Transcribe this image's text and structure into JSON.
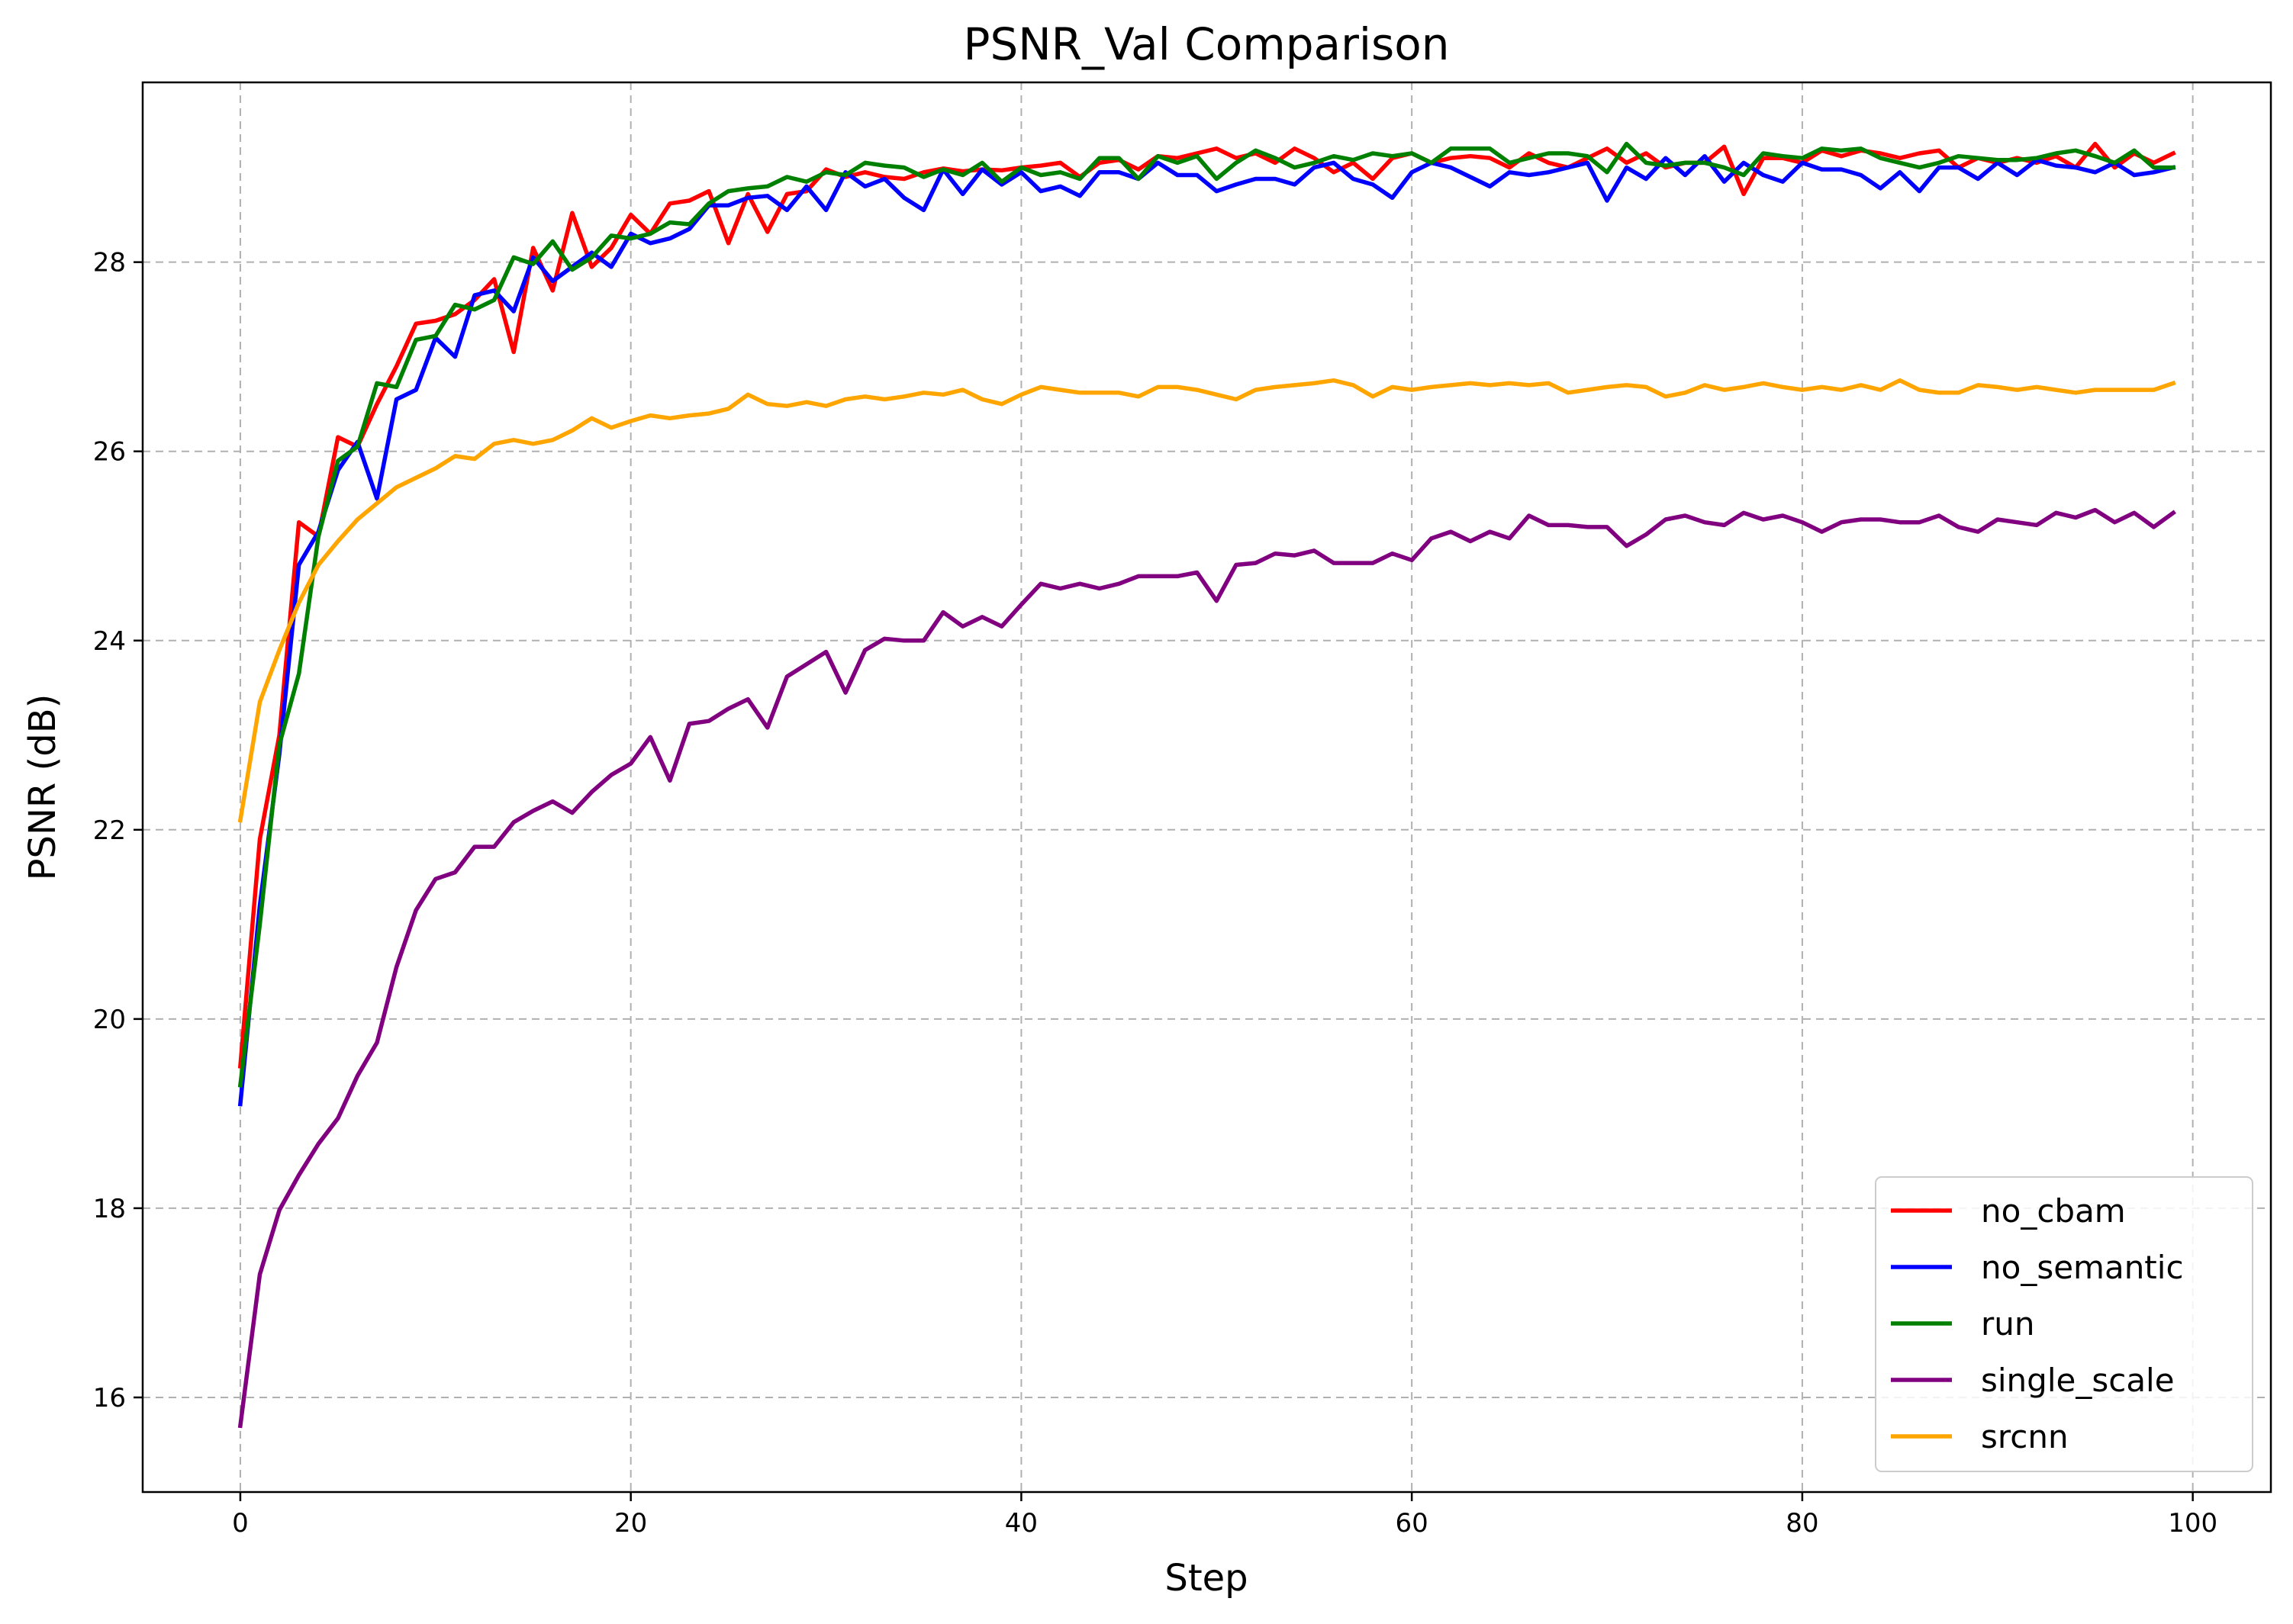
{
  "chart_data": {
    "type": "line",
    "title": "PSNR_Val Comparison",
    "xlabel": "Step",
    "ylabel": "PSNR (dB)",
    "xlim": [
      -5,
      104
    ],
    "ylim": [
      15,
      29.9
    ],
    "xticks": [
      0,
      20,
      40,
      60,
      80,
      100
    ],
    "yticks": [
      16,
      18,
      20,
      22,
      24,
      26,
      28
    ],
    "grid": true,
    "legend_position": "lower-right",
    "x": [
      0,
      1,
      2,
      3,
      4,
      5,
      6,
      7,
      8,
      9,
      10,
      11,
      12,
      13,
      14,
      15,
      16,
      17,
      18,
      19,
      20,
      21,
      22,
      23,
      24,
      25,
      26,
      27,
      28,
      29,
      30,
      31,
      32,
      33,
      34,
      35,
      36,
      37,
      38,
      39,
      40,
      41,
      42,
      43,
      44,
      45,
      46,
      47,
      48,
      49,
      50,
      51,
      52,
      53,
      54,
      55,
      56,
      57,
      58,
      59,
      60,
      61,
      62,
      63,
      64,
      65,
      66,
      67,
      68,
      69,
      70,
      71,
      72,
      73,
      74,
      75,
      76,
      77,
      78,
      79,
      80,
      81,
      82,
      83,
      84,
      85,
      86,
      87,
      88,
      89,
      90,
      91,
      92,
      93,
      94,
      95,
      96,
      97,
      98,
      99
    ],
    "series": [
      {
        "name": "no_cbam",
        "color": "#ff0000",
        "values": [
          19.5,
          21.9,
          23.0,
          25.25,
          25.1,
          26.15,
          26.05,
          26.5,
          26.9,
          27.35,
          27.38,
          27.45,
          27.6,
          27.82,
          27.05,
          28.15,
          27.7,
          28.52,
          27.95,
          28.15,
          28.5,
          28.3,
          28.62,
          28.65,
          28.75,
          28.2,
          28.72,
          28.32,
          28.72,
          28.75,
          28.98,
          28.9,
          28.95,
          28.9,
          28.88,
          28.95,
          28.99,
          28.96,
          28.98,
          28.97,
          29.0,
          29.02,
          29.05,
          28.9,
          29.05,
          29.08,
          28.98,
          29.12,
          29.1,
          29.15,
          29.2,
          29.1,
          29.15,
          29.05,
          29.2,
          29.1,
          28.95,
          29.05,
          28.88,
          29.1,
          29.15,
          29.05,
          29.1,
          29.12,
          29.1,
          29.0,
          29.15,
          29.05,
          29.0,
          29.1,
          29.2,
          29.05,
          29.15,
          29.0,
          29.05,
          29.05,
          29.22,
          28.72,
          29.1,
          29.1,
          29.05,
          29.18,
          29.12,
          29.18,
          29.15,
          29.1,
          29.15,
          29.18,
          29.0,
          29.1,
          29.05,
          29.1,
          29.05,
          29.12,
          29.0,
          29.25,
          29.0,
          29.15,
          29.05,
          29.15
        ]
      },
      {
        "name": "no_semantic",
        "color": "#0000ff",
        "values": [
          19.1,
          21.2,
          22.8,
          24.8,
          25.15,
          25.8,
          26.1,
          25.5,
          26.55,
          26.65,
          27.2,
          27.0,
          27.65,
          27.7,
          27.48,
          28.05,
          27.8,
          27.95,
          28.1,
          27.95,
          28.3,
          28.2,
          28.25,
          28.35,
          28.6,
          28.6,
          28.68,
          28.7,
          28.55,
          28.8,
          28.55,
          28.95,
          28.8,
          28.88,
          28.68,
          28.55,
          28.98,
          28.72,
          28.98,
          28.82,
          28.95,
          28.75,
          28.8,
          28.7,
          28.95,
          28.95,
          28.88,
          29.05,
          28.92,
          28.92,
          28.75,
          28.82,
          28.88,
          28.88,
          28.82,
          29.0,
          29.05,
          28.88,
          28.82,
          28.68,
          28.95,
          29.05,
          29.0,
          28.9,
          28.8,
          28.95,
          28.92,
          28.95,
          29.0,
          29.05,
          28.65,
          29.0,
          28.88,
          29.1,
          28.92,
          29.12,
          28.85,
          29.05,
          28.92,
          28.85,
          29.05,
          28.98,
          28.98,
          28.92,
          28.78,
          28.95,
          28.75,
          29.0,
          29.0,
          28.88,
          29.05,
          28.92,
          29.08,
          29.02,
          29.0,
          28.95,
          29.05,
          28.92,
          28.95,
          29.0
        ]
      },
      {
        "name": "run",
        "color": "#008000",
        "values": [
          19.3,
          21.0,
          22.9,
          23.65,
          25.1,
          25.9,
          26.05,
          26.72,
          26.68,
          27.18,
          27.22,
          27.55,
          27.5,
          27.6,
          28.05,
          27.98,
          28.22,
          27.92,
          28.05,
          28.28,
          28.25,
          28.3,
          28.42,
          28.4,
          28.62,
          28.75,
          28.78,
          28.8,
          28.9,
          28.85,
          28.95,
          28.92,
          29.05,
          29.02,
          29.0,
          28.9,
          28.98,
          28.92,
          29.05,
          28.85,
          29.0,
          28.92,
          28.95,
          28.88,
          29.1,
          29.1,
          28.88,
          29.12,
          29.05,
          29.12,
          28.88,
          29.05,
          29.18,
          29.1,
          29.0,
          29.05,
          29.12,
          29.08,
          29.15,
          29.12,
          29.15,
          29.05,
          29.2,
          29.2,
          29.2,
          29.05,
          29.1,
          29.15,
          29.15,
          29.12,
          28.95,
          29.25,
          29.05,
          29.02,
          29.05,
          29.05,
          29.0,
          28.92,
          29.15,
          29.12,
          29.1,
          29.2,
          29.18,
          29.2,
          29.1,
          29.05,
          29.0,
          29.05,
          29.12,
          29.1,
          29.08,
          29.08,
          29.1,
          29.15,
          29.18,
          29.12,
          29.05,
          29.18,
          29.0,
          29.0
        ]
      },
      {
        "name": "single_scale",
        "color": "#800080",
        "values": [
          15.7,
          17.3,
          17.98,
          18.35,
          18.68,
          18.95,
          19.4,
          19.75,
          20.55,
          21.15,
          21.48,
          21.55,
          21.82,
          21.82,
          22.08,
          22.2,
          22.3,
          22.18,
          22.4,
          22.58,
          22.7,
          22.98,
          22.52,
          23.12,
          23.15,
          23.28,
          23.38,
          23.08,
          23.62,
          23.75,
          23.88,
          23.45,
          23.9,
          24.02,
          24.0,
          24.0,
          24.3,
          24.15,
          24.25,
          24.15,
          24.38,
          24.6,
          24.55,
          24.6,
          24.55,
          24.6,
          24.68,
          24.68,
          24.68,
          24.72,
          24.42,
          24.8,
          24.82,
          24.92,
          24.9,
          24.95,
          24.82,
          24.82,
          24.82,
          24.92,
          24.85,
          25.08,
          25.15,
          25.05,
          25.15,
          25.08,
          25.32,
          25.22,
          25.22,
          25.2,
          25.2,
          25.0,
          25.12,
          25.28,
          25.32,
          25.25,
          25.22,
          25.35,
          25.28,
          25.32,
          25.25,
          25.15,
          25.25,
          25.28,
          25.28,
          25.25,
          25.25,
          25.32,
          25.2,
          25.15,
          25.28,
          25.25,
          25.22,
          25.35,
          25.3,
          25.38,
          25.25,
          25.35,
          25.2,
          25.35
        ]
      },
      {
        "name": "srcnn",
        "color": "#ffa500",
        "values": [
          22.1,
          23.35,
          23.9,
          24.4,
          24.8,
          25.05,
          25.28,
          25.45,
          25.62,
          25.72,
          25.82,
          25.95,
          25.92,
          26.08,
          26.12,
          26.08,
          26.12,
          26.22,
          26.35,
          26.25,
          26.32,
          26.38,
          26.35,
          26.38,
          26.4,
          26.45,
          26.6,
          26.5,
          26.48,
          26.52,
          26.48,
          26.55,
          26.58,
          26.55,
          26.58,
          26.62,
          26.6,
          26.65,
          26.55,
          26.5,
          26.6,
          26.68,
          26.65,
          26.62,
          26.62,
          26.62,
          26.58,
          26.68,
          26.68,
          26.65,
          26.6,
          26.55,
          26.65,
          26.68,
          26.7,
          26.72,
          26.75,
          26.7,
          26.58,
          26.68,
          26.65,
          26.68,
          26.7,
          26.72,
          26.7,
          26.72,
          26.7,
          26.72,
          26.62,
          26.65,
          26.68,
          26.7,
          26.68,
          26.58,
          26.62,
          26.7,
          26.65,
          26.68,
          26.72,
          26.68,
          26.65,
          26.68,
          26.65,
          26.7,
          26.65,
          26.75,
          26.65,
          26.62,
          26.62,
          26.7,
          26.68,
          26.65,
          26.68,
          26.65,
          26.62,
          26.65,
          26.65,
          26.65,
          26.65,
          26.72
        ]
      }
    ]
  }
}
